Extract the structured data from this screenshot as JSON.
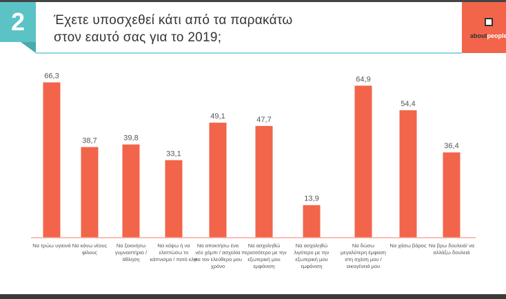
{
  "header": {
    "number": "2",
    "title_line1": "Έχετε υποσχεθεί κάτι από τα παρακάτω",
    "title_line2": "στον εαυτό σας για το 2019;",
    "logo_text_a": "about",
    "logo_text_b": "people"
  },
  "colors": {
    "bar": "#f2654b",
    "teal": "#5bc2c6"
  },
  "chart_data": {
    "type": "bar",
    "title": "Έχετε υποσχεθεί κάτι από τα παρακάτω στον εαυτό σας για το 2019;",
    "categories": [
      "Να τρώω υγιεινά",
      "Να κάνω νέους φίλους",
      "Να ξεκινήσω γυμναστήριο / άθληση",
      "Να κόψω ή να ελαττώσω το κάπνισμα / ποτό κλπ",
      "Να αποκτήσω ένα νέο χόμπι / ασχολία για τον ελεύθερο μου χρόνο",
      "Να ασχοληθώ περισσότερο με την εξωτερική μου εμφάνιση",
      "Να ασχοληθώ λιγότερο με την εξωτερική μου εμφάνιση",
      "Να δώσω μεγαλύτερη έμφαση στη σχέση μου / οικογένειά μου",
      "Να χάσω βάρος",
      "Να βρω δουλειά/ να αλλάξω δουλειά"
    ],
    "values": [
      66.3,
      38.7,
      39.8,
      33.1,
      49.1,
      47.7,
      13.9,
      64.9,
      54.4,
      36.4
    ],
    "labels": [
      "66,3",
      "38,7",
      "39,8",
      "33,1",
      "49,1",
      "47,7",
      "13,9",
      "64,9",
      "54,4",
      "36,4"
    ],
    "ylim": [
      0,
      70
    ],
    "xlabel": "",
    "ylabel": "",
    "grid": false
  }
}
